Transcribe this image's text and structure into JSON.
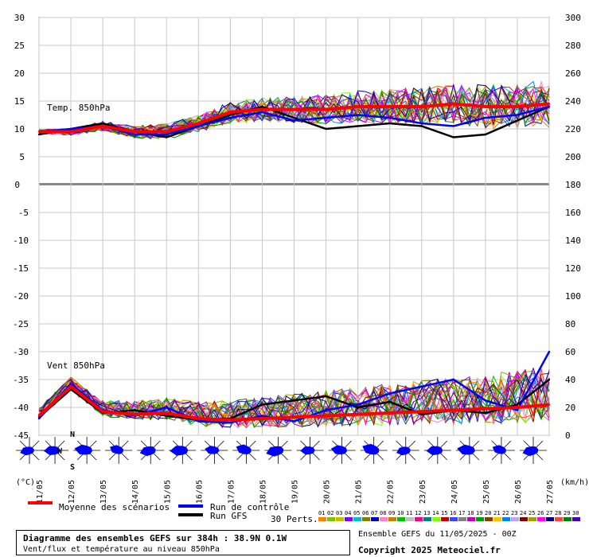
{
  "chart_data": [
    {
      "type": "line",
      "panel": "temperature",
      "label": "Temp. 850hPa",
      "unit_left": "(°C)",
      "yticks_left": [
        5,
        10,
        15,
        20,
        25,
        30
      ],
      "ylim": [
        0,
        30
      ],
      "x": [
        "11/05",
        "12/05",
        "13/05",
        "14/05",
        "15/05",
        "16/05",
        "17/05",
        "18/05",
        "19/05",
        "20/05",
        "21/05",
        "22/05",
        "23/05",
        "24/05",
        "25/05",
        "26/05",
        "27/05"
      ],
      "series": [
        {
          "name": "Moyenne des scénarios",
          "color": "#ff0000",
          "values": [
            9.5,
            9.5,
            10.5,
            9.5,
            9.5,
            11.0,
            13.0,
            13.5,
            13.5,
            13.5,
            14.0,
            14.0,
            14.0,
            14.5,
            14.0,
            14.0,
            14.5
          ]
        },
        {
          "name": "Run de contrôle",
          "color": "#0000ff",
          "values": [
            9.5,
            10.0,
            10.5,
            9.0,
            9.0,
            10.5,
            12.0,
            13.0,
            11.5,
            12.0,
            12.5,
            12.0,
            11.0,
            10.5,
            12.0,
            12.5,
            14.0
          ]
        },
        {
          "name": "Run GFS",
          "color": "#000000",
          "values": [
            9.0,
            10.0,
            11.0,
            9.5,
            8.5,
            10.5,
            12.5,
            14.0,
            12.0,
            10.0,
            10.5,
            11.0,
            10.5,
            8.5,
            9.0,
            11.5,
            14.0
          ]
        }
      ]
    },
    {
      "type": "line",
      "panel": "wind",
      "label": "Vent 850hPa",
      "unit_right": "(km/h)",
      "yticks_left": [
        -45,
        -40,
        -35,
        -30,
        -25,
        -20,
        -15,
        -10,
        -5,
        0
      ],
      "yticks_right": [
        0,
        20,
        40,
        60,
        80,
        100,
        120,
        140,
        160,
        180,
        200,
        220,
        240,
        260,
        280,
        300
      ],
      "ylim": [
        0,
        180
      ],
      "x": [
        "11/05",
        "12/05",
        "13/05",
        "14/05",
        "15/05",
        "16/05",
        "17/05",
        "18/05",
        "19/05",
        "20/05",
        "21/05",
        "22/05",
        "23/05",
        "24/05",
        "25/05",
        "26/05",
        "27/05"
      ],
      "series": [
        {
          "name": "Moyenne des scénarios",
          "color": "#ff0000",
          "values": [
            14,
            35,
            17,
            15,
            16,
            12,
            11,
            12,
            13,
            14,
            15,
            16,
            17,
            18,
            19,
            20,
            22
          ]
        },
        {
          "name": "Run de contrôle",
          "color": "#0000ff",
          "values": [
            12,
            37,
            18,
            14,
            20,
            10,
            9,
            14,
            10,
            18,
            22,
            30,
            35,
            40,
            25,
            18,
            60
          ]
        },
        {
          "name": "Run GFS",
          "color": "#000000",
          "values": [
            13,
            33,
            16,
            18,
            14,
            11,
            12,
            22,
            25,
            28,
            20,
            24,
            15,
            18,
            16,
            22,
            40
          ]
        }
      ]
    }
  ],
  "legend": {
    "mean": "Moyenne des scénarios",
    "control": "Run de contrôle",
    "gfs": "Run GFS",
    "perts": "30 Perts.",
    "pert_labels": [
      "01",
      "02",
      "03",
      "04",
      "05",
      "06",
      "07",
      "08",
      "09",
      "10",
      "11",
      "12",
      "13",
      "14",
      "15",
      "16",
      "17",
      "18",
      "19",
      "20",
      "21",
      "22",
      "23",
      "24",
      "25",
      "26",
      "27",
      "28",
      "29",
      "30"
    ],
    "pert_colors": [
      "#ff8000",
      "#80c000",
      "#c0c000",
      "#8000ff",
      "#00c0c0",
      "#808000",
      "#0000c0",
      "#ff80c0",
      "#c08000",
      "#00c000",
      "#c0c0c0",
      "#ff0080",
      "#008080",
      "#80ff00",
      "#c00000",
      "#4040ff",
      "#808080",
      "#c000c0",
      "#00a000",
      "#804000",
      "#ffc000",
      "#0080ff",
      "#c0a0ff",
      "#800000",
      "#a0a000",
      "#ff00ff",
      "#000080",
      "#ff4040",
      "#008000",
      "#4000c0"
    ]
  },
  "compass": {
    "n": "N",
    "s": "S",
    "w": "W"
  },
  "footer": {
    "title": "Diagramme des ensembles GEFS sur 384h : 38.9N 0.1W",
    "subtitle": "Vent/flux et température au niveau 850hPa",
    "ensemble": "Ensemble GEFS du 11/05/2025 - 00Z",
    "copyright": "Copyright 2025 Meteociel.fr"
  }
}
